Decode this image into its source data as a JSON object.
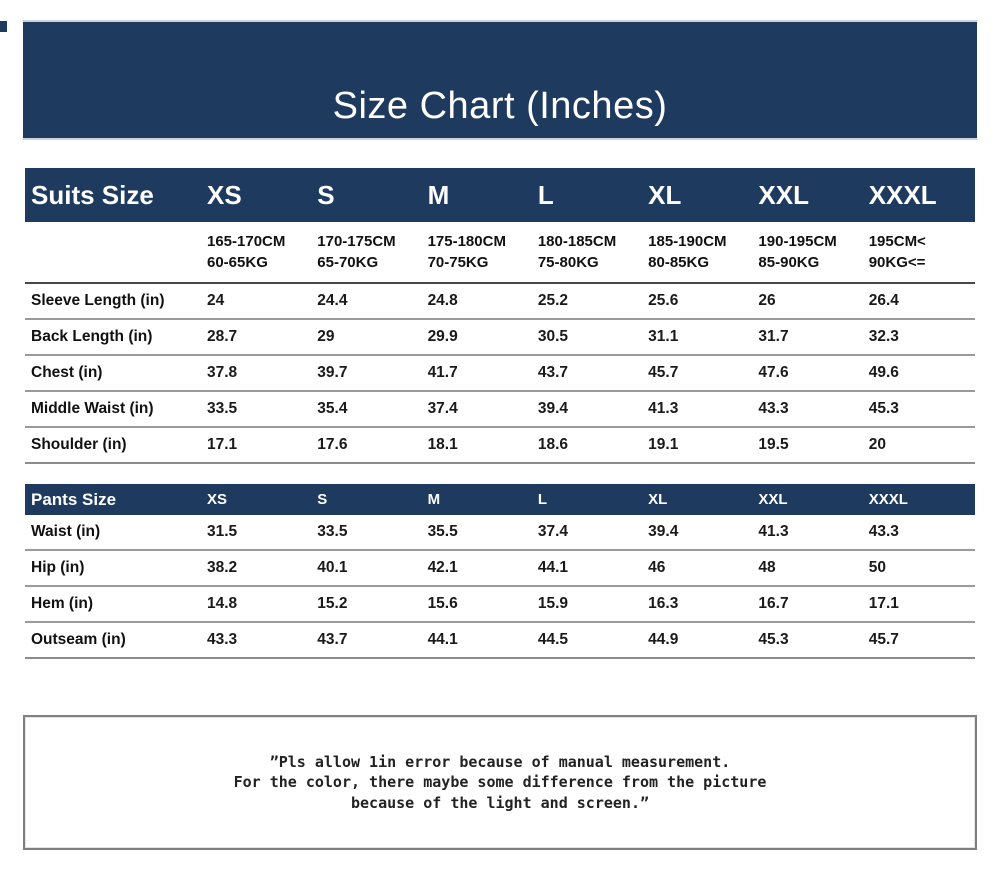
{
  "page": {
    "title": "Size Chart (Inches)"
  },
  "colors": {
    "navy": "#1e3a5f",
    "row_line": "#9a9a9a",
    "dark_line": "#474747",
    "note_border": "#7f7f7f"
  },
  "suits_table": {
    "header_label": "Suits Size",
    "sizes": [
      "XS",
      "S",
      "M",
      "L",
      "XL",
      "XXL",
      "XXXL"
    ],
    "ranges": [
      {
        "height": "165-170CM",
        "weight": "60-65KG"
      },
      {
        "height": "170-175CM",
        "weight": "65-70KG"
      },
      {
        "height": "175-180CM",
        "weight": "70-75KG"
      },
      {
        "height": "180-185CM",
        "weight": "75-80KG"
      },
      {
        "height": "185-190CM",
        "weight": "80-85KG"
      },
      {
        "height": "190-195CM",
        "weight": "85-90KG"
      },
      {
        "height": "195CM<",
        "weight": "90KG<="
      }
    ],
    "rows": [
      {
        "label": "Sleeve Length (in)",
        "values": [
          "24",
          "24.4",
          "24.8",
          "25.2",
          "25.6",
          "26",
          "26.4"
        ]
      },
      {
        "label": "Back Length (in)",
        "values": [
          "28.7",
          "29",
          "29.9",
          "30.5",
          "31.1",
          "31.7",
          "32.3"
        ]
      },
      {
        "label": "Chest (in)",
        "values": [
          "37.8",
          "39.7",
          "41.7",
          "43.7",
          "45.7",
          "47.6",
          "49.6"
        ]
      },
      {
        "label": "Middle Waist (in)",
        "values": [
          "33.5",
          "35.4",
          "37.4",
          "39.4",
          "41.3",
          "43.3",
          "45.3"
        ]
      },
      {
        "label": "Shoulder (in)",
        "values": [
          "17.1",
          "17.6",
          "18.1",
          "18.6",
          "19.1",
          "19.5",
          "20"
        ]
      }
    ]
  },
  "pants_table": {
    "header_label": "Pants Size",
    "sizes": [
      "XS",
      "S",
      "M",
      "L",
      "XL",
      "XXL",
      "XXXL"
    ],
    "rows": [
      {
        "label": "Waist (in)",
        "values": [
          "31.5",
          "33.5",
          "35.5",
          "37.4",
          "39.4",
          "41.3",
          "43.3"
        ]
      },
      {
        "label": "Hip (in)",
        "values": [
          "38.2",
          "40.1",
          "42.1",
          "44.1",
          "46",
          "48",
          "50"
        ]
      },
      {
        "label": "Hem (in)",
        "values": [
          "14.8",
          "15.2",
          "15.6",
          "15.9",
          "16.3",
          "16.7",
          "17.1"
        ]
      },
      {
        "label": "Outseam (in)",
        "values": [
          "43.3",
          "43.7",
          "44.1",
          "44.5",
          "44.9",
          "45.3",
          "45.7"
        ]
      }
    ]
  },
  "footnote": {
    "lines": [
      "”Pls allow 1in error because of manual measurement.",
      "For the color, there maybe some difference from the picture",
      "because of the light and screen.”"
    ]
  }
}
